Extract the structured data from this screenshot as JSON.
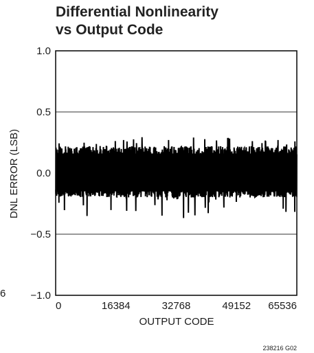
{
  "chart_data": {
    "type": "line",
    "title_lines": [
      "Differential Nonlinearity",
      "vs Output Code"
    ],
    "xlabel": "OUTPUT CODE",
    "ylabel": "DNL ERROR (LSB)",
    "xlim": [
      0,
      65536
    ],
    "ylim": [
      -1.0,
      1.0
    ],
    "x_ticks": [
      0,
      16384,
      32768,
      49152,
      65536
    ],
    "x_tick_labels": [
      "0",
      "16384",
      "32768",
      "49152",
      "65536"
    ],
    "y_ticks": [
      1.0,
      0.5,
      0.0,
      -0.5,
      -1.0
    ],
    "y_tick_labels": [
      "1.0",
      "0.5",
      "0.0",
      "−0.5",
      "−1.0"
    ],
    "grid_y_values": [
      0.5,
      -0.5
    ],
    "grid": true,
    "series": [
      {
        "color": "#000000",
        "envelope_note": "dense noise band",
        "band_typical_range": [
          -0.2,
          0.22
        ],
        "band_peak_range": [
          -0.37,
          0.3
        ]
      }
    ],
    "stray_left_label": "6",
    "figure_id": "238216 G02"
  }
}
